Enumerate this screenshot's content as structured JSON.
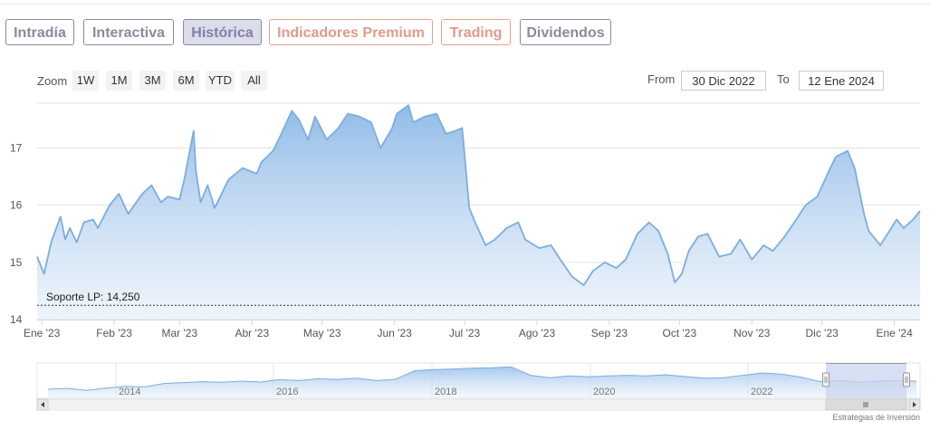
{
  "tabs": [
    {
      "label": "Intradía",
      "style": "gray",
      "active": false
    },
    {
      "label": "Interactiva",
      "style": "gray",
      "active": false
    },
    {
      "label": "Histórica",
      "style": "gray",
      "active": true
    },
    {
      "label": "Indicadores Premium",
      "style": "salmon",
      "active": false
    },
    {
      "label": "Trading",
      "style": "salmon",
      "active": false
    },
    {
      "label": "Dividendos",
      "style": "gray",
      "active": false
    }
  ],
  "zoom": {
    "label": "Zoom",
    "buttons": [
      "1W",
      "1M",
      "3M",
      "6M",
      "YTD",
      "All"
    ]
  },
  "range": {
    "from_label": "From",
    "from_value": "30 Dic 2022",
    "to_label": "To",
    "to_value": "12 Ene 2024"
  },
  "credit": "Estrategias de Inversión",
  "colors": {
    "line": "#7cade0",
    "fill_top": "#8bb8e6",
    "fill_bottom": "#e4eef9",
    "support": "#333333",
    "navigator_mask": "#c9d6ee"
  },
  "chart_data": {
    "type": "area",
    "x_ticks": [
      "Ene '23",
      "Feb '23",
      "Mar '23",
      "Abr '23",
      "May '23",
      "Jun '23",
      "Jul '23",
      "Ago '23",
      "Sep '23",
      "Oct '23",
      "Nov '23",
      "Dic '23",
      "Ene '24"
    ],
    "y_ticks": [
      14,
      15,
      16,
      17
    ],
    "ylim": [
      14,
      17.8
    ],
    "grid": true,
    "support_line": {
      "label": "Soporte LP: 14,250",
      "value": 14.25
    },
    "series": [
      {
        "x": [
          "2022-12-30",
          "2023-01-02",
          "2023-01-05",
          "2023-01-09",
          "2023-01-11",
          "2023-01-13",
          "2023-01-16",
          "2023-01-19",
          "2023-01-23",
          "2023-01-25",
          "2023-01-30",
          "2023-02-03",
          "2023-02-07",
          "2023-02-13",
          "2023-02-17",
          "2023-02-21",
          "2023-02-24",
          "2023-03-01",
          "2023-03-03",
          "2023-03-07",
          "2023-03-08",
          "2023-03-10",
          "2023-03-13",
          "2023-03-16",
          "2023-03-22",
          "2023-03-28",
          "2023-04-03",
          "2023-04-05",
          "2023-04-10",
          "2023-04-13",
          "2023-04-18",
          "2023-04-21",
          "2023-04-25",
          "2023-04-28",
          "2023-05-03",
          "2023-05-08",
          "2023-05-12",
          "2023-05-17",
          "2023-05-22",
          "2023-05-26",
          "2023-05-31",
          "2023-06-02",
          "2023-06-07",
          "2023-06-09",
          "2023-06-14",
          "2023-06-19",
          "2023-06-23",
          "2023-06-27",
          "2023-06-30",
          "2023-07-03",
          "2023-07-05",
          "2023-07-10",
          "2023-07-14",
          "2023-07-19",
          "2023-07-24",
          "2023-07-27",
          "2023-08-02",
          "2023-08-07",
          "2023-08-11",
          "2023-08-16",
          "2023-08-21",
          "2023-08-25",
          "2023-08-30",
          "2023-09-04",
          "2023-09-08",
          "2023-09-13",
          "2023-09-18",
          "2023-09-22",
          "2023-09-26",
          "2023-09-29",
          "2023-10-02",
          "2023-10-05",
          "2023-10-09",
          "2023-10-13",
          "2023-10-18",
          "2023-10-23",
          "2023-10-27",
          "2023-11-01",
          "2023-11-06",
          "2023-11-10",
          "2023-11-15",
          "2023-11-20",
          "2023-11-24",
          "2023-11-29",
          "2023-12-04",
          "2023-12-07",
          "2023-12-12",
          "2023-12-15",
          "2023-12-19",
          "2023-12-21",
          "2023-12-26",
          "2024-01-02",
          "2024-01-05",
          "2024-01-09",
          "2024-01-12"
        ],
        "values": [
          15.1,
          14.8,
          15.35,
          15.8,
          15.4,
          15.6,
          15.35,
          15.7,
          15.75,
          15.6,
          16.0,
          16.2,
          15.85,
          16.2,
          16.35,
          16.05,
          16.15,
          16.1,
          16.45,
          17.3,
          16.6,
          16.05,
          16.35,
          15.95,
          16.45,
          16.65,
          16.55,
          16.75,
          16.95,
          17.2,
          17.65,
          17.5,
          17.15,
          17.55,
          17.15,
          17.35,
          17.6,
          17.55,
          17.45,
          17.0,
          17.35,
          17.6,
          17.75,
          17.45,
          17.55,
          17.6,
          17.25,
          17.3,
          17.35,
          15.95,
          15.75,
          15.3,
          15.4,
          15.6,
          15.7,
          15.4,
          15.25,
          15.3,
          15.05,
          14.75,
          14.6,
          14.85,
          15.0,
          14.9,
          15.05,
          15.5,
          15.7,
          15.55,
          15.15,
          14.65,
          14.8,
          15.2,
          15.45,
          15.5,
          15.1,
          15.15,
          15.4,
          15.05,
          15.3,
          15.2,
          15.45,
          15.75,
          16.0,
          16.15,
          16.6,
          16.85,
          16.95,
          16.65,
          15.85,
          15.55,
          15.3,
          15.75,
          15.6,
          15.75,
          15.9
        ]
      }
    ],
    "navigator": {
      "x_ticks": [
        "2014",
        "2016",
        "2018",
        "2020",
        "2022"
      ],
      "values": [
        0.22,
        0.25,
        0.18,
        0.26,
        0.32,
        0.3,
        0.42,
        0.45,
        0.48,
        0.46,
        0.5,
        0.47,
        0.55,
        0.52,
        0.58,
        0.56,
        0.6,
        0.52,
        0.56,
        0.86,
        0.9,
        0.92,
        0.95,
        0.96,
        0.99,
        0.7,
        0.62,
        0.68,
        0.65,
        0.68,
        0.7,
        0.68,
        0.72,
        0.66,
        0.6,
        0.62,
        0.7,
        0.78,
        0.74,
        0.64,
        0.48,
        0.52,
        0.46,
        0.5,
        0.52,
        0.5
      ]
    }
  }
}
